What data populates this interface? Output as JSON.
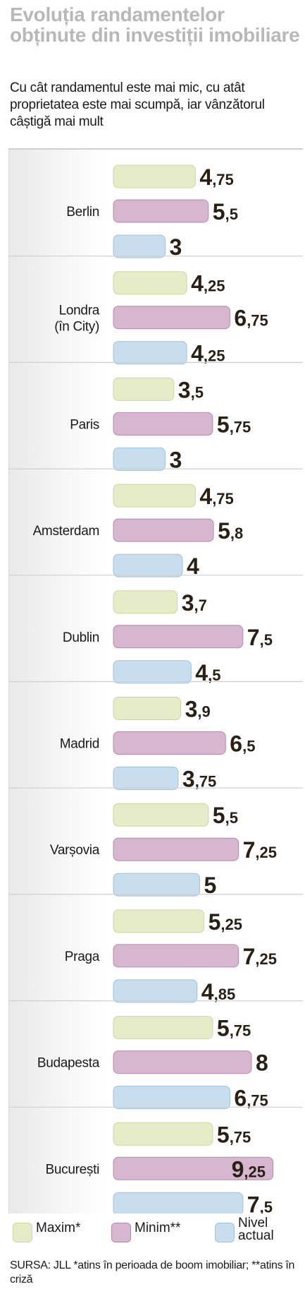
{
  "title": "Evoluția randamentelor obținute din investiții imobiliare",
  "subtitle": "Cu cât randamentul este mai mic, cu atât proprietatea este mai scumpă, iar vânzătorul câștigă mai mult",
  "source": "SURSA: JLL *atins în perioada de boom imobiliar; **atins în criză",
  "legend": {
    "maxim": "Maxim*",
    "minim": "Minim**",
    "nivel_actual": "Nivel actual"
  },
  "colors": {
    "maxim": "#e6ebc8",
    "minim": "#d7b6cf",
    "nivel_actual": "#c8deef",
    "maxim_stroke": "#cdd7a0",
    "minim_stroke": "#b78aac",
    "nivel_actual_stroke": "#9fc2df",
    "title": "#b8b8b8",
    "value_text": "#2a1f14"
  },
  "chart_data": {
    "type": "bar",
    "orientation": "horizontal",
    "categories": [
      "Berlin",
      "Londra (în City)",
      "Paris",
      "Amsterdam",
      "Dublin",
      "Madrid",
      "Varșovia",
      "Praga",
      "Budapesta",
      "București"
    ],
    "series": [
      {
        "name": "Maxim*",
        "values": [
          4.75,
          4.25,
          3.5,
          4.75,
          3.7,
          3.9,
          5.5,
          5.25,
          5.75,
          5.75
        ],
        "labels": [
          "4,75",
          "4,25",
          "3,5",
          "4,75",
          "3,7",
          "3,9",
          "5,5",
          "5,25",
          "5,75",
          "5,75"
        ]
      },
      {
        "name": "Minim**",
        "values": [
          5.5,
          6.75,
          5.75,
          5.8,
          7.5,
          6.5,
          7.25,
          7.25,
          8,
          9.25
        ],
        "labels": [
          "5,5",
          "6,75",
          "5,75",
          "5,8",
          "7,5",
          "6,5",
          "7,25",
          "7,25",
          "8",
          "9,25"
        ]
      },
      {
        "name": "Nivel actual",
        "values": [
          3,
          4.25,
          3,
          4,
          4.5,
          3.75,
          5,
          4.85,
          6.75,
          7.5
        ],
        "labels": [
          "3",
          "4,25",
          "3",
          "4",
          "4,5",
          "3,75",
          "5",
          "4,85",
          "6,75",
          "7,5"
        ]
      }
    ]
  }
}
